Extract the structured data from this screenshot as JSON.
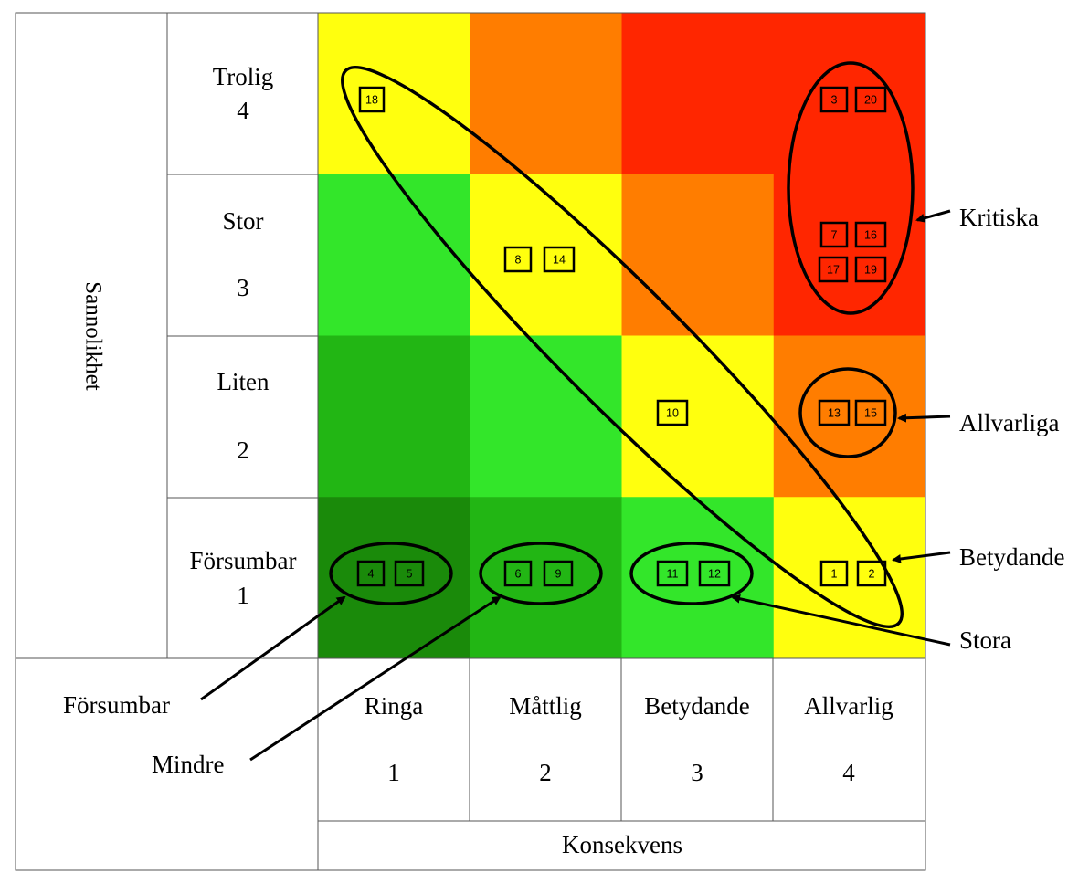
{
  "axis": {
    "y_title": "Sannolikhet",
    "x_title": "Konsekvens"
  },
  "rows": [
    {
      "name": "Trolig",
      "value": "4"
    },
    {
      "name": "Stor",
      "value": "3"
    },
    {
      "name": "Liten",
      "value": "2"
    },
    {
      "name": "Försumbar",
      "value": "1"
    }
  ],
  "columns": [
    {
      "name": "Ringa",
      "value": "1"
    },
    {
      "name": "Måttlig",
      "value": "2"
    },
    {
      "name": "Betydande",
      "value": "3"
    },
    {
      "name": "Allvarlig",
      "value": "4"
    }
  ],
  "colors": {
    "dark_green": "#1a8a0a",
    "mid_green": "#22b614",
    "light_green": "#33e62a",
    "yellow": "#ffff0e",
    "orange": "#ff7d00",
    "red": "#ff2600"
  },
  "cell_colors": [
    [
      "yellow",
      "orange",
      "red",
      "red"
    ],
    [
      "light_green",
      "yellow",
      "orange",
      "red"
    ],
    [
      "mid_green",
      "light_green",
      "yellow",
      "orange"
    ],
    [
      "dark_green",
      "mid_green",
      "light_green",
      "yellow"
    ]
  ],
  "risks": [
    "18",
    "3",
    "20",
    "8",
    "14",
    "7",
    "16",
    "17",
    "19",
    "10",
    "13",
    "15",
    "4",
    "5",
    "6",
    "9",
    "11",
    "12",
    "1",
    "2"
  ],
  "categories": {
    "kritiska": "Kritiska",
    "allvarliga": "Allvarliga",
    "betydande": "Betydande",
    "stora": "Stora",
    "forsumbar": "Försumbar",
    "mindre": "Mindre"
  }
}
